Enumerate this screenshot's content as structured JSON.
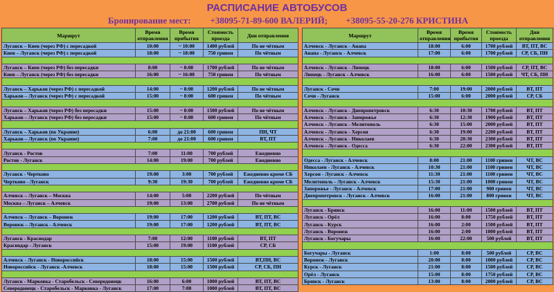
{
  "header": {
    "title": "РАСПИСАНИЕ АВТОБУСОВ",
    "booking_label": "Бронирование мест:",
    "phones": [
      "+38095-71-89-600 ВАЛЕРИЙ;",
      "+38095-55-20-276 КРИСТИНА"
    ]
  },
  "left_table": {
    "columns": [
      "Маршрут",
      "Время отправления",
      "Время прибытия",
      "Стоимость проезда",
      "Дни отправления"
    ],
    "groups": [
      [
        [
          "Луганск – Киев (через РФ) с пересадкой",
          "10:00",
          "~ 10:00",
          "1400 рублей",
          "По не чётным"
        ],
        [
          "Киев – Луганск (через РФ) с пересадкой",
          "18:00",
          "~ 18:00",
          "750 гривен",
          "По чётным"
        ]
      ],
      [
        [
          "Луганск – Киев (через РФ) без пересадки",
          "8:00",
          "~ 8:00",
          "1700 рублей",
          "По не чётным"
        ],
        [
          "Киев – Луганск (через РФ) без пересадки",
          "16:00",
          "~ 16:00",
          "750 гривен",
          "По чётным"
        ]
      ],
      [
        [
          "Луганск – Харьков (через РФ) с пересадкой",
          "14:00",
          "~ 8:00",
          "1200 рублей",
          "По не чётным"
        ],
        [
          "Харьков – Луганск (через РФ) с пересадкой",
          "15:00",
          "~ 8:00",
          "600 гривен",
          "По чётным"
        ]
      ],
      [
        [
          "Луганск – Харьков (через РФ) без пересадки",
          "15:00",
          "~ 8:00",
          "1500 рублей",
          "По не чётным"
        ],
        [
          "Харьков – Луганск (через РФ) без пересадки",
          "15:00",
          "~ 8:00",
          "600 гривен",
          "По чётным"
        ]
      ],
      [
        [
          "Луганск – Харьков (по Украине)",
          "6:00",
          "до 21:00",
          "600 гривен",
          "ПН, ЧТ"
        ],
        [
          "Харьков – Луганск (по Украине)",
          "7:00",
          "до 21:00",
          "600 гривен",
          "ВТ, ПТ"
        ]
      ],
      [
        [
          "Луганск - Ростов",
          "7:00",
          "11:00",
          "700 рублей",
          "Ежедневно"
        ],
        [
          "Ростов - Луганск",
          "14:00",
          "19:00",
          "700 рублей",
          "Ежедневно"
        ]
      ],
      [
        [
          "Луганск - Чертково",
          "19:00",
          "3:00",
          "700 рублей",
          "Ежедневно кроме СБ"
        ],
        [
          "Чертково - Луганск",
          "9:30",
          "19:30",
          "700 рублей",
          "Ежедневно кроме СБ"
        ]
      ],
      [
        [
          "Алчевск – Луганск – Москва",
          "14:00",
          "5:00",
          "2200 рублей",
          "По чётным"
        ],
        [
          "Москва – Луганск – Алчевск",
          "19:00",
          "13:00",
          "2700 рублей",
          "По не чётным"
        ]
      ],
      [
        [
          "Алчевск – Луганск – Воронеж",
          "19:00",
          "17:00",
          "1200 рублей",
          "ВТ, ПТ, ВС"
        ],
        [
          "Воронеж – Луганск - Алчевск",
          "19:00",
          "17:00",
          "1200 рублей",
          "ВТ, ПТ, ВС"
        ]
      ],
      [
        [
          "Луганск - Краснодар",
          "7:00",
          "12:00",
          "1100 рублей",
          "ВТ, ПТ"
        ],
        [
          "Краснодар - Луганск",
          "15:00",
          "19:00",
          "1100 рублей",
          "СР, СБ"
        ]
      ],
      [
        [
          "Алчевск - Луганск - Новороссийск",
          "18:00",
          "15:00",
          "1500 рублей",
          "ВТ,ПН, ВС"
        ],
        [
          "Новороссийск - Луганск -Алчевск",
          "18:00",
          "15:00",
          "1500 рублей",
          "СР, СБ, ПН"
        ]
      ],
      [
        [
          "Луганск - Марковка - Старобельск - Северодонецк",
          "16:00",
          "6:00",
          "1000 рублей",
          "ВТ, ПТ, ВС"
        ],
        [
          "Северодонецк - Старобельск - Марковка - Луганск",
          "17:00",
          "7:00",
          "1000 рублей",
          "ВТ, ПТ, ВС"
        ]
      ]
    ]
  },
  "right_table": {
    "columns": [
      "Маршрут",
      "Время отправления",
      "Время прибытия",
      "Стоимость проезда",
      "Дни отправления"
    ],
    "groups": [
      [
        [
          "Алчевск - Луганск - Анапа",
          "18:00",
          "6:00",
          "1700 рублей",
          "ВТ, ПТ, ВС"
        ],
        [
          "Анапа - Луганск - Алчевск",
          "17:00",
          "6:00",
          "1700 рублей",
          "СР, СБ, ПН"
        ]
      ],
      [
        [
          "Алчевск - Луганск - Липецк",
          "18:00",
          "6:00",
          "1500 рублей",
          "СР, ПТ, ВС"
        ],
        [
          "Липецк - Луганск - Алчевск",
          "16:00",
          "6:00",
          "1500 рублей",
          "ЧТ, СБ, ПН"
        ]
      ],
      [
        [
          "Луганск - Сочи",
          "7:00",
          "19:00",
          "2000 рублей",
          "ВТ, ПТ"
        ],
        [
          "Сочи - Луганск",
          "15:00",
          "6:00",
          "2000 рублей",
          "СР, СБ"
        ]
      ],
      [
        [
          "Алчевск - Луганск - Днепропетровск",
          "6:30",
          "10:30",
          "1700 рублей",
          "ВТ, ПТ"
        ],
        [
          "Алчевск - Луганск - Запорожье",
          "6:30",
          "12:30",
          "1900 рублей",
          "ВТ, ПТ"
        ],
        [
          "Алчевск - Луганск - Мелитополь",
          "6:30",
          "15:00",
          "2000 рублей",
          "ВТ, ПТ"
        ],
        [
          "Алчевск - Луганск - Херсон",
          "6:30",
          "19:00",
          "2200 рублей",
          "ВТ, ПТ"
        ],
        [
          "Алчевск - Луганск - Николаев",
          "6:30",
          "20:30",
          "2300 рублей",
          "ВТ, ПТ"
        ],
        [
          "Алчевск - Луганск - Одесса",
          "6:30",
          "22:00",
          "2300 рублей",
          "ВТ, ПТ"
        ]
      ],
      [
        [
          "Одесса - Луганск - Алчевск",
          "8:00",
          "21:00",
          "1100 гривен",
          "ЧТ, ВС"
        ],
        [
          "Николаев - Луганск - Алчевск",
          "10:30",
          "21:00",
          "1100 гривен",
          "ЧТ, ВС"
        ],
        [
          "Херсон - Луганск - Алчевск",
          "11:30",
          "21:00",
          "1100 гривен",
          "ЧТ, ВС"
        ],
        [
          "Мелитополь - Луганск - Алчевск",
          "15:30",
          "21:00",
          "1000 гривен",
          "ЧТ, ВС"
        ],
        [
          "Запорожье - Луганск - Алчевск",
          "17:00",
          "21:00",
          "900 гривен",
          "ЧТ, ВС"
        ],
        [
          "Днепропетровск - Луганск - Алчевск",
          "16:00",
          "21:00",
          "800 гривен",
          "ЧТ, ВС"
        ]
      ],
      [
        [
          "Луганск - Брянск",
          "16:00",
          "11:00",
          "1500 рублей",
          "ВТ, ПТ"
        ],
        [
          "Луганск - Орёл",
          "16:00",
          "8:00",
          "1750 рублей",
          "ВТ, ПТ"
        ],
        [
          "Луганск - Курск",
          "16:00",
          "2:00",
          "1500 рублей",
          "ВТ, ПТ"
        ],
        [
          "Луганск - Воронеж",
          "16:00",
          "2:00",
          "1000 рублей",
          "ВТ, ПТ"
        ],
        [
          "Луганск - Богучары",
          "16:00",
          "22:00",
          "500 рублей",
          "ВТ, ПТ"
        ]
      ],
      [
        [
          "Богучары - Луганск",
          "1:00",
          "8:00",
          "500 рублей",
          "СР, ВС"
        ],
        [
          "Воронеж - Луганск",
          "20:00",
          "8:00",
          "1000 рублей",
          "СР, ВС"
        ],
        [
          "Курск - Луганск",
          "21:00",
          "8:00",
          "1500 рублей",
          "СР, ВС"
        ],
        [
          "Орёл - Луганск",
          "15:00",
          "8:00",
          "1750 рублей",
          "СР, ВС"
        ],
        [
          "Брянск - Луганск",
          "13:00",
          "8:00",
          "2000 рублей",
          "СР, ВС"
        ]
      ]
    ]
  }
}
